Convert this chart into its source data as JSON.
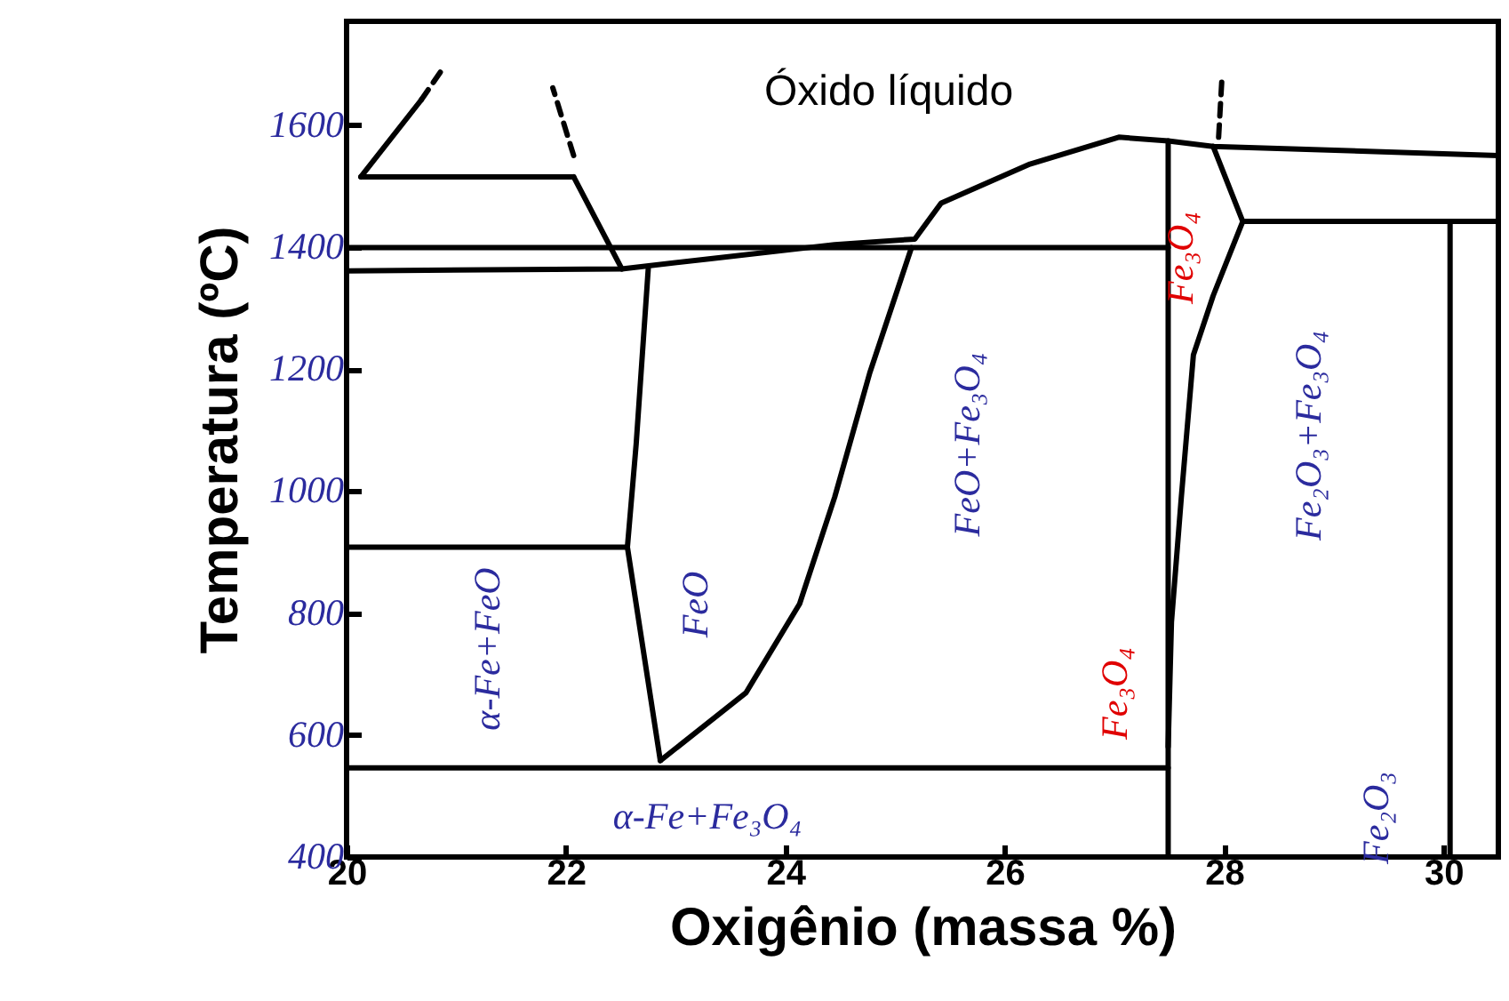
{
  "chart_data": {
    "type": "line",
    "xlabel": "Oxigênio (massa %)",
    "ylabel": "Temperatura (ºC)",
    "xlim": [
      20,
      30.5
    ],
    "xticks": [
      20,
      22,
      24,
      26,
      28,
      30
    ],
    "ylim": [
      400,
      1770
    ],
    "yticks": [
      400,
      600,
      800,
      1000,
      1200,
      1400,
      1600
    ],
    "series": [
      {
        "color": "#000000",
        "x": [
          20.13,
          22.07
        ],
        "values": [
          1515,
          1515
        ]
      },
      {
        "color": "#000000",
        "x": [
          20.13,
          20.68
        ],
        "values": [
          1515,
          1641
        ]
      },
      {
        "color": "#000000",
        "x": [
          20.68,
          20.89
        ],
        "values": [
          1641,
          1696
        ],
        "line_style": "dashed"
      },
      {
        "color": "#000000",
        "x": [
          22.07,
          22.51
        ],
        "values": [
          1515,
          1364
        ]
      },
      {
        "color": "#000000",
        "x": [
          22.07,
          21.88
        ],
        "values": [
          1550,
          1661
        ],
        "line_style": "dashed"
      },
      {
        "color": "#000000",
        "x": [
          20,
          27.49
        ],
        "values": [
          1399,
          1399
        ]
      },
      {
        "color": "#000000",
        "x": [
          20,
          22.51,
          23.32,
          24.45,
          25.18,
          25.42,
          26.23,
          27.04,
          27.49,
          27.9,
          30.5
        ],
        "values": [
          1361,
          1364,
          1381,
          1404,
          1413,
          1472,
          1536,
          1580,
          1574,
          1565,
          1550
        ]
      },
      {
        "color": "#000000",
        "x": [
          22.75,
          22.64,
          22.56,
          22.86
        ],
        "values": [
          1364,
          1077,
          908,
          558
        ]
      },
      {
        "color": "#000000",
        "x": [
          22.86,
          23.64,
          24.13,
          24.45,
          24.77,
          25.15
        ],
        "values": [
          558,
          669,
          815,
          990,
          1194,
          1399
        ]
      },
      {
        "color": "#000000",
        "x": [
          20,
          22.56
        ],
        "values": [
          908,
          908
        ]
      },
      {
        "color": "#000000",
        "x": [
          20,
          27.49
        ],
        "values": [
          546,
          546
        ]
      },
      {
        "color": "#000000",
        "x": [
          27.49,
          27.49
        ],
        "values": [
          400,
          1574
        ]
      },
      {
        "color": "#000000",
        "x": [
          27.9,
          28.17,
          27.9,
          27.72,
          27.61,
          27.52,
          27.49
        ],
        "values": [
          1565,
          1442,
          1320,
          1223,
          990,
          785,
          581
        ]
      },
      {
        "color": "#000000",
        "x": [
          28.17,
          30.5
        ],
        "values": [
          1442,
          1442
        ]
      },
      {
        "color": "#000000",
        "x": [
          30.06,
          30.06
        ],
        "values": [
          400,
          1442
        ]
      },
      {
        "color": "#000000",
        "x": [
          27.95,
          27.98
        ],
        "values": [
          1580,
          1676
        ],
        "line_style": "dashed"
      }
    ],
    "annotations": [
      "Óxido líquido",
      "α-Fe+FeO",
      "FeO",
      "FeO+Fe₃O₄",
      "Fe₃O₄",
      "Fe₃O₄",
      "Fe₂O₃+Fe₃O₄",
      "Fe₂O₃",
      "α-Fe+Fe₃O₄"
    ]
  }
}
